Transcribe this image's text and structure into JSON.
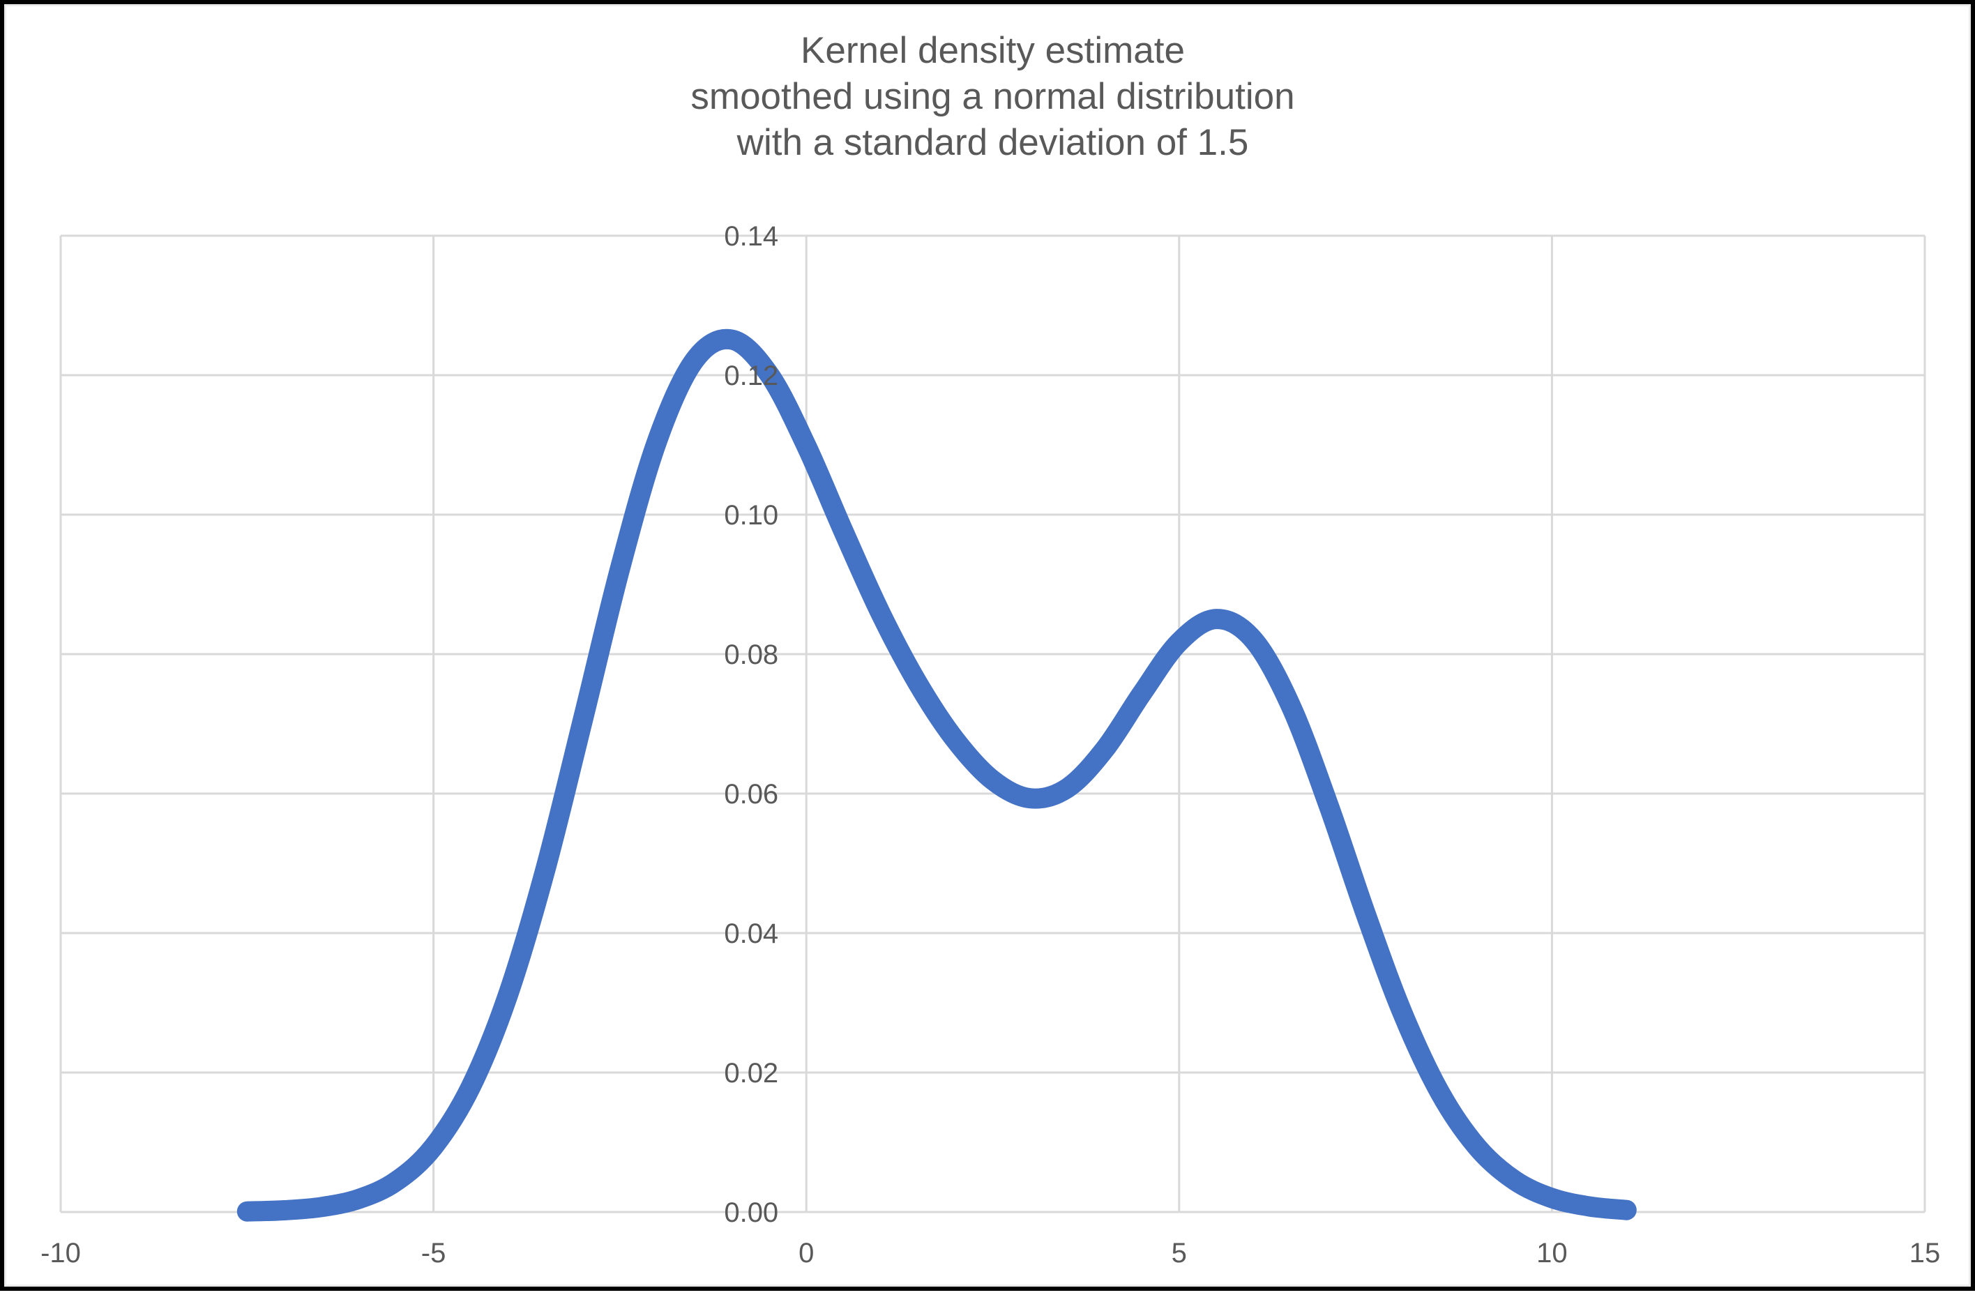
{
  "window": {
    "background_color": "#FFFFFF",
    "frame_color": "#000000"
  },
  "title": {
    "lines": [
      "Kernel density estimate",
      "smoothed using a normal distribution",
      "with a standard deviation of 1.5"
    ],
    "color": "#595959"
  },
  "style": {
    "gridline_color": "#D9D9D9",
    "tick_label_color": "#595959",
    "curve_color": "#4472C4",
    "plot_background": "#FFFFFF"
  },
  "chart_data": {
    "type": "line",
    "title": "Kernel density estimate smoothed using a normal distribution with a standard deviation of 1.5",
    "xlabel": "",
    "ylabel": "",
    "xlim": [
      -10,
      15
    ],
    "ylim": [
      0,
      0.14
    ],
    "grid": true,
    "legend": false,
    "smoothing_std_dev": 1.5,
    "x_ticks": [
      {
        "value": -10,
        "label": "-10"
      },
      {
        "value": -5,
        "label": "-5"
      },
      {
        "value": 0,
        "label": "0"
      },
      {
        "value": 5,
        "label": "5"
      },
      {
        "value": 10,
        "label": "10"
      },
      {
        "value": 15,
        "label": "15"
      }
    ],
    "y_ticks": [
      {
        "value": 0.0,
        "label": "0.00"
      },
      {
        "value": 0.02,
        "label": "0.02"
      },
      {
        "value": 0.04,
        "label": "0.04"
      },
      {
        "value": 0.06,
        "label": "0.06"
      },
      {
        "value": 0.08,
        "label": "0.08"
      },
      {
        "value": 0.1,
        "label": "0.10"
      },
      {
        "value": 0.12,
        "label": "0.12"
      },
      {
        "value": 0.14,
        "label": "0.14"
      }
    ],
    "series": [
      {
        "name": "Kernel density estimate",
        "color": "#4472C4",
        "x": [
          -7.5,
          -7,
          -6.5,
          -6,
          -5.5,
          -5,
          -4.5,
          -4,
          -3.5,
          -3,
          -2.5,
          -2,
          -1.5,
          -1,
          -0.5,
          0,
          0.5,
          1,
          1.5,
          2,
          2.5,
          3,
          3.5,
          4,
          4.5,
          5,
          5.5,
          6,
          6.5,
          7,
          7.5,
          8,
          8.5,
          9,
          9.5,
          10,
          10.5,
          11
        ],
        "y": [
          8e-05,
          0.00025,
          0.00072,
          0.00188,
          0.00441,
          0.00935,
          0.01795,
          0.03115,
          0.0491,
          0.07043,
          0.0922,
          0.11059,
          0.12213,
          0.1251,
          0.12015,
          0.10988,
          0.09757,
          0.08578,
          0.07572,
          0.06767,
          0.06193,
          0.05933,
          0.06078,
          0.06633,
          0.07435,
          0.08173,
          0.08504,
          0.08202,
          0.07252,
          0.05846,
          0.04281,
          0.02842,
          0.01708,
          0.00927,
          0.00454,
          0.002,
          0.0008,
          0.00028
        ]
      }
    ]
  }
}
